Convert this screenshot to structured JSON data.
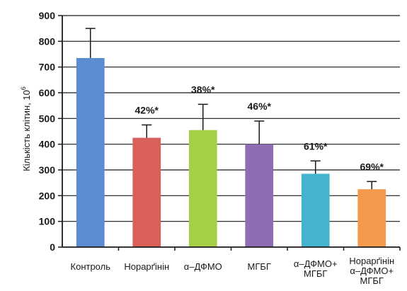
{
  "chart_data": {
    "type": "bar",
    "title": "",
    "ylabel": "Кількість клітин, 10",
    "ylabel_superscript": "6",
    "xlabel": "",
    "ylim": [
      0,
      900
    ],
    "yticks": [
      "0",
      "100",
      "200",
      "300",
      "400",
      "500",
      "600",
      "700",
      "800",
      "900"
    ],
    "grid": true,
    "legend": "none",
    "categories": [
      [
        "Контроль"
      ],
      [
        "Норарґінін"
      ],
      [
        "α–ДФМО"
      ],
      [
        "МГБГ"
      ],
      [
        "α–ДФМО+",
        "МГБГ"
      ],
      [
        "Норарґінін",
        "α–ДФМО+",
        "МГБГ"
      ]
    ],
    "values": [
      735,
      425,
      455,
      400,
      285,
      225
    ],
    "errors": [
      115,
      50,
      100,
      90,
      50,
      30
    ],
    "annotations": [
      "",
      "42%*",
      "38%*",
      "46%*",
      "61%*",
      "69%*"
    ],
    "colors": [
      "#5b8bd0",
      "#d9605a",
      "#a6cf48",
      "#8f6db3",
      "#44b3cc",
      "#f39a4d"
    ]
  }
}
